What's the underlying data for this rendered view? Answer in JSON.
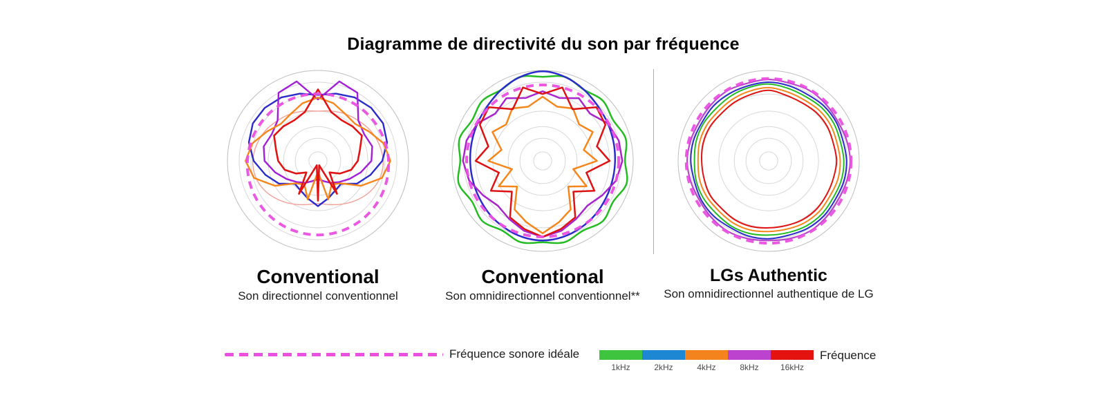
{
  "title": "Diagramme de directivité du son par fréquence",
  "legend": {
    "ideal_label": "Fréquence sonore idéale",
    "ideal_color": "#ea50e0",
    "frequency_label": "Fréquence",
    "frequencies": [
      {
        "label": "1kHz",
        "color": "#3ec43e"
      },
      {
        "label": "2kHz",
        "color": "#1d87d3"
      },
      {
        "label": "4kHz",
        "color": "#f5831d"
      },
      {
        "label": "8kHz",
        "color": "#bb43cd"
      },
      {
        "label": "16kHz",
        "color": "#e41310"
      }
    ]
  },
  "chart_data": [
    {
      "type": "polar-line",
      "heading": "Conventional",
      "subtitle": "Son directionnel conventionnel",
      "angle_convention": {
        "zero": "top",
        "direction": "clockwise",
        "step_deg": 15
      },
      "r_max": 1.0,
      "grid_rings": [
        0.1,
        0.25,
        0.38,
        0.55,
        0.74,
        0.87,
        1.0
      ],
      "ideal": {
        "label": "Fréquence sonore idéale",
        "radius": 0.78,
        "cy_offset": 5
      },
      "series": [
        {
          "name": "light-red",
          "color": "#f2a097",
          "width": 1.4,
          "smooth": true,
          "values": [
            0.55,
            0.57,
            0.6,
            0.63,
            0.67,
            0.7,
            0.72,
            0.71,
            0.67,
            0.61,
            0.55,
            0.5,
            0.47,
            0.5,
            0.55,
            0.61,
            0.67,
            0.71,
            0.72,
            0.7,
            0.67,
            0.63,
            0.6,
            0.57
          ]
        },
        {
          "name": "2kHz",
          "color": "#2b2bcb",
          "width": 2.4,
          "smooth": false,
          "values": [
            0.73,
            0.77,
            0.81,
            0.83,
            0.83,
            0.79,
            0.71,
            0.6,
            0.5,
            0.36,
            0.38,
            0.43,
            0.5,
            0.43,
            0.38,
            0.36,
            0.5,
            0.6,
            0.71,
            0.79,
            0.83,
            0.83,
            0.81,
            0.77
          ]
        },
        {
          "name": "8kHz",
          "color": "#a21fd6",
          "width": 2.4,
          "smooth": false,
          "values": [
            0.68,
            0.91,
            0.87,
            0.63,
            0.59,
            0.62,
            0.59,
            0.49,
            0.4,
            0.33,
            0.28,
            0.23,
            0.2,
            0.23,
            0.28,
            0.33,
            0.4,
            0.49,
            0.59,
            0.62,
            0.59,
            0.63,
            0.87,
            0.91
          ]
        },
        {
          "name": "4kHz",
          "color": "#f5861c",
          "width": 2.4,
          "smooth": false,
          "values": [
            0.7,
            0.66,
            0.6,
            0.58,
            0.65,
            0.75,
            0.8,
            0.73,
            0.55,
            0.35,
            0.3,
            0.44,
            0.12,
            0.44,
            0.3,
            0.35,
            0.55,
            0.73,
            0.8,
            0.75,
            0.65,
            0.58,
            0.6,
            0.66
          ]
        },
        {
          "name": "16kHz",
          "color": "#e01312",
          "width": 2.6,
          "smooth": false,
          "values": [
            0.79,
            0.56,
            0.52,
            0.54,
            0.56,
            0.48,
            0.44,
            0.38,
            0.28,
            0.18,
            0.42,
            0.05,
            0.44,
            0.05,
            0.42,
            0.18,
            0.28,
            0.38,
            0.44,
            0.48,
            0.56,
            0.54,
            0.52,
            0.56
          ]
        }
      ]
    },
    {
      "type": "polar-line",
      "heading": "Conventional",
      "subtitle": "Son omnidirectionnel conventionnel**",
      "angle_convention": {
        "zero": "top",
        "direction": "clockwise",
        "step_deg": 15
      },
      "r_max": 1.0,
      "grid_rings": [
        0.1,
        0.25,
        0.38,
        0.55,
        0.74,
        0.87,
        1.0
      ],
      "ideal": {
        "label": "Fréquence sonore idéale",
        "radius": 0.84,
        "cy_offset": 0
      },
      "series": [
        {
          "name": "1kHz",
          "color": "#23bc23",
          "width": 2.5,
          "smooth": true,
          "values": [
            0.93,
            0.96,
            0.91,
            0.94,
            0.9,
            0.95,
            0.91,
            0.96,
            0.9,
            0.94,
            0.89,
            0.93,
            0.9,
            0.93,
            0.89,
            0.94,
            0.9,
            0.96,
            0.91,
            0.95,
            0.9,
            0.94,
            0.91,
            0.96
          ]
        },
        {
          "name": "2kHz",
          "color": "#2b2bcb",
          "width": 2.5,
          "smooth": true,
          "values": [
            0.99,
            0.96,
            0.91,
            0.86,
            0.83,
            0.81,
            0.8,
            0.8,
            0.81,
            0.83,
            0.85,
            0.87,
            0.88,
            0.87,
            0.85,
            0.83,
            0.81,
            0.8,
            0.8,
            0.81,
            0.83,
            0.86,
            0.91,
            0.96
          ]
        },
        {
          "name": "4kHz",
          "color": "#f5861c",
          "width": 2.5,
          "smooth": false,
          "values": [
            0.71,
            0.62,
            0.67,
            0.57,
            0.64,
            0.47,
            0.6,
            0.35,
            0.56,
            0.4,
            0.62,
            0.7,
            0.8,
            0.7,
            0.62,
            0.4,
            0.56,
            0.35,
            0.6,
            0.47,
            0.64,
            0.57,
            0.67,
            0.62
          ]
        },
        {
          "name": "8kHz",
          "color": "#a825cd",
          "width": 2.5,
          "smooth": false,
          "values": [
            0.77,
            0.72,
            0.8,
            0.74,
            0.83,
            0.87,
            0.88,
            0.84,
            0.76,
            0.7,
            0.74,
            0.8,
            0.84,
            0.8,
            0.74,
            0.7,
            0.76,
            0.84,
            0.88,
            0.87,
            0.83,
            0.74,
            0.8,
            0.72
          ]
        },
        {
          "name": "16kHz",
          "color": "#dd1212",
          "width": 2.5,
          "smooth": false,
          "values": [
            0.74,
            0.84,
            0.66,
            0.84,
            0.8,
            0.62,
            0.74,
            0.5,
            0.66,
            0.48,
            0.72,
            0.78,
            0.84,
            0.78,
            0.72,
            0.48,
            0.66,
            0.5,
            0.74,
            0.62,
            0.8,
            0.84,
            0.66,
            0.84
          ]
        }
      ]
    },
    {
      "type": "polar-line",
      "heading": "LGs Authentic",
      "subtitle": "Son omnidirectionnel authentique de LG",
      "angle_convention": {
        "zero": "top",
        "direction": "clockwise",
        "step_deg": 15
      },
      "r_max": 1.0,
      "grid_rings": [
        0.1,
        0.25,
        0.38,
        0.55,
        0.74,
        0.87,
        1.0
      ],
      "ideal": {
        "label": "Fréquence sonore idéale",
        "radius": 0.91,
        "cy_offset": 0
      },
      "series": [
        {
          "name": "16kHz",
          "color": "#e01312",
          "width": 2.0,
          "smooth": true,
          "values": [
            0.78,
            0.75,
            0.74,
            0.75,
            0.75,
            0.74,
            0.75,
            0.74,
            0.74,
            0.75,
            0.75,
            0.74,
            0.74,
            0.75,
            0.75,
            0.74,
            0.75,
            0.74,
            0.74,
            0.75,
            0.75,
            0.74,
            0.75,
            0.76
          ]
        },
        {
          "name": "4kHz",
          "color": "#f5861c",
          "width": 2.0,
          "smooth": true,
          "values": [
            0.81,
            0.79,
            0.78,
            0.79,
            0.79,
            0.78,
            0.79,
            0.79,
            0.78,
            0.79,
            0.79,
            0.78,
            0.78,
            0.79,
            0.79,
            0.78,
            0.79,
            0.79,
            0.78,
            0.79,
            0.79,
            0.78,
            0.79,
            0.8
          ]
        },
        {
          "name": "1kHz",
          "color": "#23bc23",
          "width": 2.0,
          "smooth": true,
          "values": [
            0.85,
            0.83,
            0.82,
            0.83,
            0.83,
            0.82,
            0.83,
            0.83,
            0.82,
            0.83,
            0.83,
            0.82,
            0.82,
            0.83,
            0.83,
            0.82,
            0.83,
            0.83,
            0.82,
            0.83,
            0.83,
            0.82,
            0.83,
            0.84
          ]
        },
        {
          "name": "2kHz",
          "color": "#2b2bcb",
          "width": 2.0,
          "smooth": true,
          "values": [
            0.87,
            0.86,
            0.85,
            0.86,
            0.86,
            0.85,
            0.86,
            0.86,
            0.85,
            0.86,
            0.86,
            0.85,
            0.86,
            0.86,
            0.85,
            0.86,
            0.86,
            0.85,
            0.86,
            0.86,
            0.85,
            0.86,
            0.86,
            0.86
          ]
        },
        {
          "name": "8kHz",
          "color": "#b845cb",
          "width": 2.2,
          "smooth": true,
          "values": [
            0.9,
            0.89,
            0.9,
            0.89,
            0.88,
            0.89,
            0.9,
            0.89,
            0.88,
            0.89,
            0.9,
            0.89,
            0.88,
            0.89,
            0.9,
            0.89,
            0.88,
            0.89,
            0.9,
            0.89,
            0.88,
            0.89,
            0.9,
            0.89
          ]
        }
      ]
    }
  ]
}
